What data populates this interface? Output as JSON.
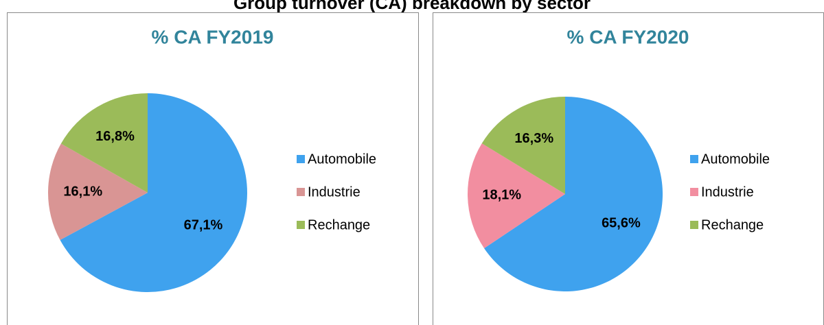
{
  "title": "Group turnover (CA) breakdown by sector",
  "chart_data": [
    {
      "type": "pie",
      "title": "% CA FY2019",
      "categories": [
        "Automobile",
        "Industrie",
        "Rechange"
      ],
      "values": [
        67.1,
        16.1,
        16.8
      ],
      "value_labels": [
        "67,1%",
        "16,1%",
        "16,8%"
      ],
      "colors": [
        "#3fa2ee",
        "#d99594",
        "#9bbb59"
      ],
      "legend": "right"
    },
    {
      "type": "pie",
      "title": "% CA FY2020",
      "categories": [
        "Automobile",
        "Industrie",
        "Rechange"
      ],
      "values": [
        65.6,
        18.1,
        16.3
      ],
      "value_labels": [
        "65,6%",
        "18,1%",
        "16,3%"
      ],
      "colors": [
        "#3fa2ee",
        "#f28ea0",
        "#9bbb59"
      ],
      "legend": "right"
    }
  ]
}
